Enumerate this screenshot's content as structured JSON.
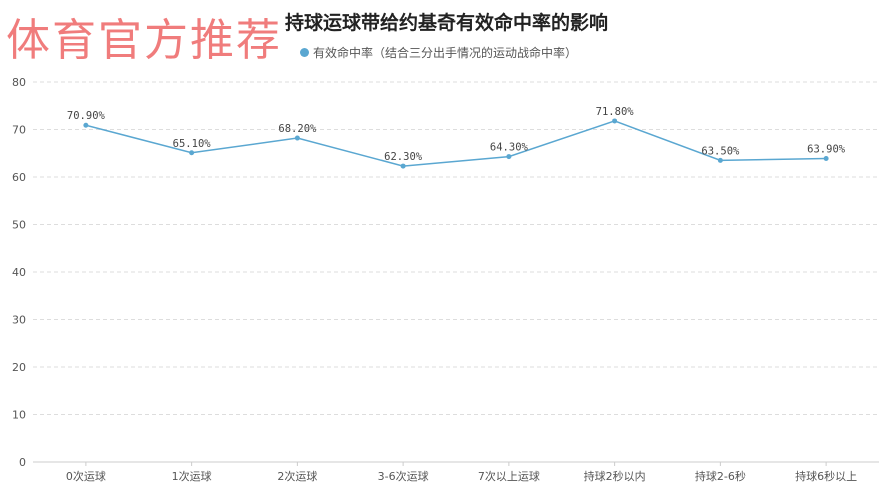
{
  "watermark": "体育官方推荐",
  "chart_data": {
    "type": "line",
    "title": "持球运球带给约基奇有效命中率的影响",
    "categories": [
      "0次运球",
      "1次运球",
      "2次运球",
      "3-6次运球",
      "7次以上运球",
      "持球2秒以内",
      "持球2-6秒",
      "持球6秒以上"
    ],
    "series": [
      {
        "name": "有效命中率（结合三分出手情况的运动战命中率）",
        "values": [
          70.9,
          65.1,
          68.2,
          62.3,
          64.3,
          71.8,
          63.5,
          63.9
        ],
        "labels": [
          "70.90%",
          "65.10%",
          "68.20%",
          "62.30%",
          "64.30%",
          "71.80%",
          "63.50%",
          "63.90%"
        ],
        "color": "#5aa7d1"
      }
    ],
    "ylim": [
      0,
      80
    ],
    "yticks": [
      0,
      10,
      20,
      30,
      40,
      50,
      60,
      70,
      80
    ],
    "grid": true,
    "legend": "top"
  }
}
